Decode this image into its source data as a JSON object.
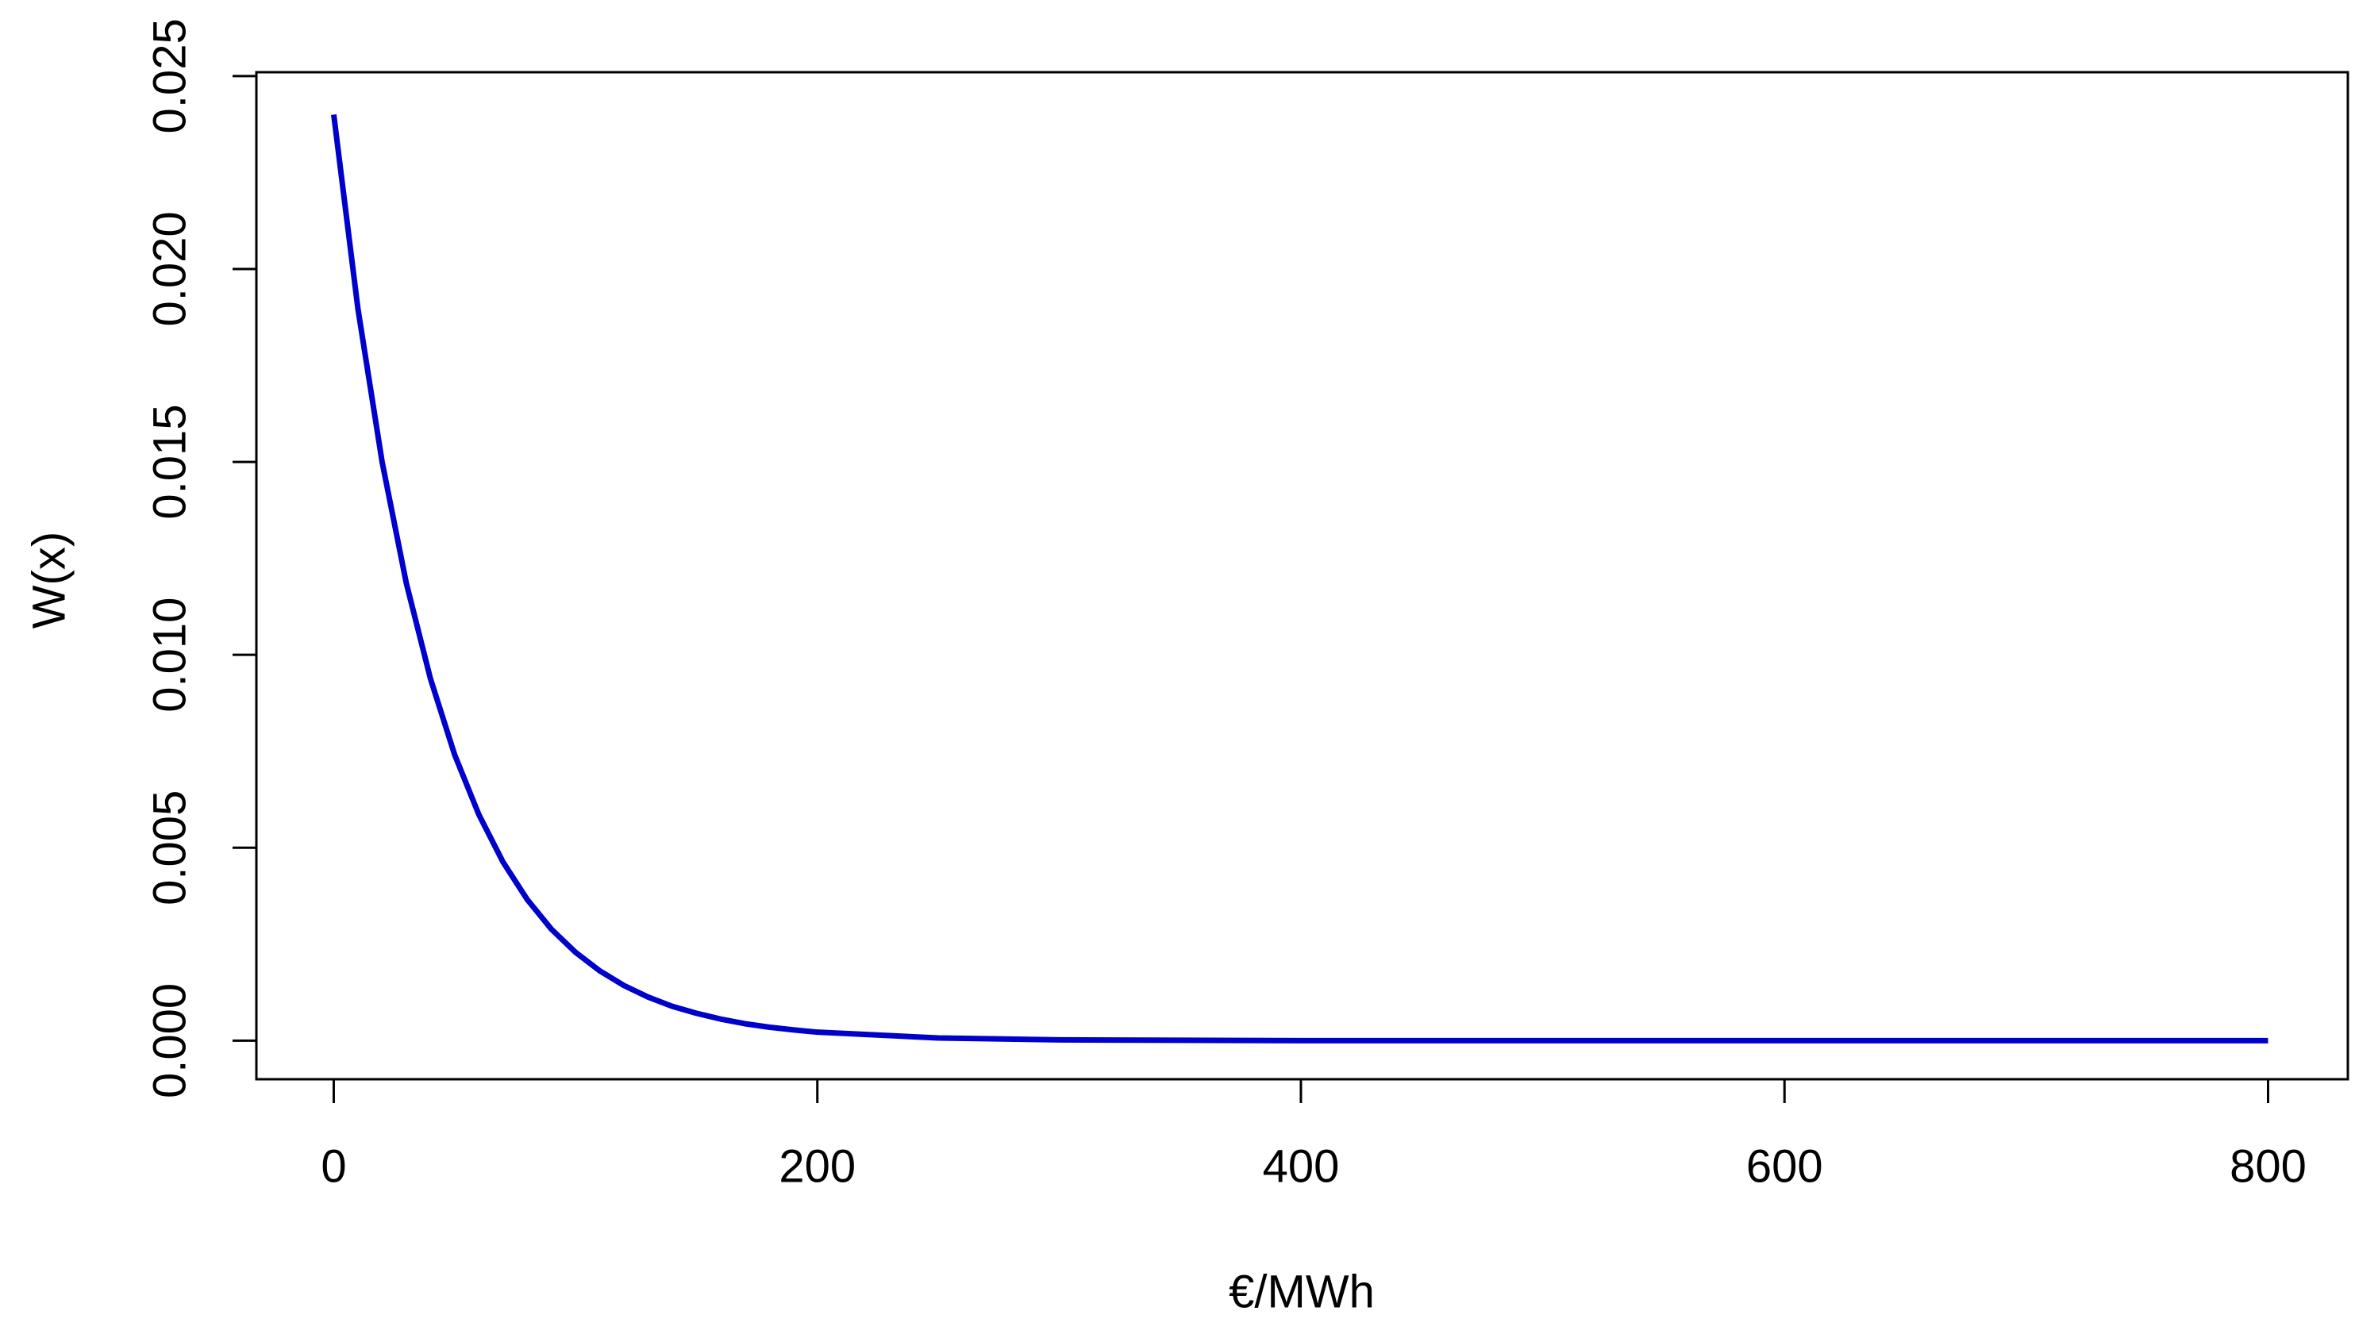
{
  "chart_data": {
    "type": "line",
    "x_label": "€/MWh",
    "y_label": "W(x)",
    "x": [
      0,
      10,
      20,
      30,
      40,
      50,
      60,
      70,
      80,
      90,
      100,
      110,
      120,
      130,
      140,
      150,
      160,
      170,
      180,
      190,
      200,
      250,
      300,
      350,
      400,
      450,
      500,
      550,
      600,
      650,
      700,
      750,
      800
    ],
    "series": [
      {
        "color": "#0000cd",
        "values": [
          0.024,
          0.01897,
          0.015,
          0.01186,
          0.00938,
          0.00741,
          0.00586,
          0.00463,
          0.00366,
          0.00289,
          0.00229,
          0.00181,
          0.00143,
          0.00113,
          0.00089,
          0.00071,
          0.00056,
          0.00044,
          0.00035,
          0.00028,
          0.00022,
          7e-05,
          2e-05,
          1e-05,
          0,
          0,
          0,
          0,
          0,
          0,
          0,
          0,
          0
        ]
      }
    ],
    "xlim": [
      -32,
      833
    ],
    "ylim": [
      -0.001,
      0.0251
    ],
    "xticks": [
      0,
      200,
      400,
      600,
      800
    ],
    "yticks": [
      {
        "value": 0,
        "label": "0.000"
      },
      0.005,
      {
        "value": 0.01,
        "label": "0.010"
      },
      0.015,
      {
        "value": 0.02,
        "label": "0.020"
      },
      0.025
    ],
    "grid": false
  }
}
